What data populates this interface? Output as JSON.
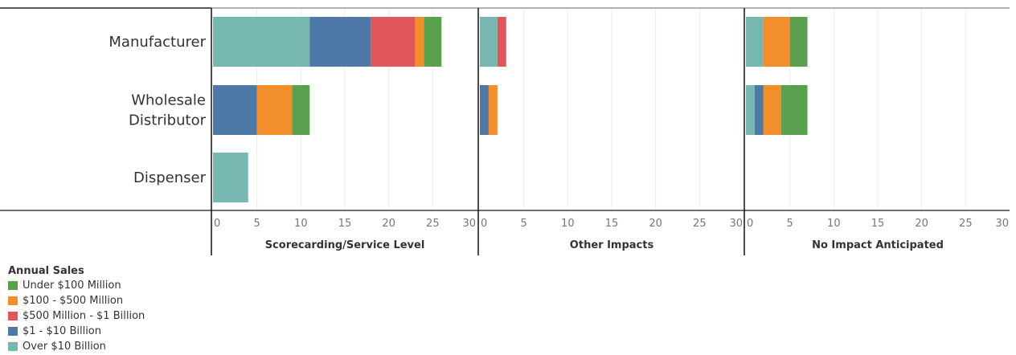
{
  "chart_data": {
    "type": "bar",
    "orientation": "horizontal",
    "stacked": true,
    "categories": [
      "Manufacturer",
      "Wholesale Distributor",
      "Dispenser"
    ],
    "category_lines": [
      [
        "Manufacturer"
      ],
      [
        "Wholesale",
        "Distributor"
      ],
      [
        "Dispenser"
      ]
    ],
    "panels": [
      {
        "title": "Scorecarding/Service Level",
        "xlim": [
          0,
          30
        ],
        "ticks": [
          "0",
          "5",
          "10",
          "15",
          "20",
          "25",
          "30"
        ],
        "series": [
          {
            "name": "Over $10 Billion",
            "values": [
              11,
              0,
              4
            ]
          },
          {
            "name": "$1 - $10 Billion",
            "values": [
              7,
              5,
              0
            ]
          },
          {
            "name": "$500 Million - $1 Billion",
            "values": [
              5,
              0,
              0
            ]
          },
          {
            "name": "$100 - $500 Million",
            "values": [
              1,
              4,
              0
            ]
          },
          {
            "name": "Under $100 Million",
            "values": [
              2,
              2,
              0
            ]
          }
        ]
      },
      {
        "title": "Other Impacts",
        "xlim": [
          0,
          30
        ],
        "ticks": [
          "0",
          "5",
          "10",
          "15",
          "20",
          "25",
          "30"
        ],
        "series": [
          {
            "name": "Over $10 Billion",
            "values": [
              2,
              0,
              0
            ]
          },
          {
            "name": "$1 - $10 Billion",
            "values": [
              0,
              1,
              0
            ]
          },
          {
            "name": "$500 Million - $1 Billion",
            "values": [
              1,
              0,
              0
            ]
          },
          {
            "name": "$100 - $500 Million",
            "values": [
              0,
              1,
              0
            ]
          },
          {
            "name": "Under $100 Million",
            "values": [
              0,
              0,
              0
            ]
          }
        ]
      },
      {
        "title": "No Impact Anticipated",
        "xlim": [
          0,
          30
        ],
        "ticks": [
          "0",
          "5",
          "10",
          "15",
          "20",
          "25",
          "30"
        ],
        "series": [
          {
            "name": "Over $10 Billion",
            "values": [
              2,
              1,
              0
            ]
          },
          {
            "name": "$1 - $10 Billion",
            "values": [
              0,
              1,
              0
            ]
          },
          {
            "name": "$500 Million - $1 Billion",
            "values": [
              0,
              0,
              0
            ]
          },
          {
            "name": "$100 - $500 Million",
            "values": [
              3,
              2,
              0
            ]
          },
          {
            "name": "Under $100 Million",
            "values": [
              2,
              3,
              0
            ]
          }
        ]
      }
    ],
    "colors": {
      "Over $10 Billion": "#76b7b2",
      "$1 - $10 Billion": "#4e79a7",
      "$500 Million - $1 Billion": "#e15759",
      "$100 - $500 Million": "#f28e2b",
      "Under $100 Million": "#59a14f"
    },
    "legend": {
      "title": "Annual Sales",
      "position": "bottom-left",
      "items": [
        {
          "label": "Under $100 Million",
          "color": "#59a14f"
        },
        {
          "label": "$100 - $500 Million",
          "color": "#f28e2b"
        },
        {
          "label": "$500 Million - $1 Billion",
          "color": "#e15759"
        },
        {
          "label": "$1 - $10 Billion",
          "color": "#4e79a7"
        },
        {
          "label": "Over $10 Billion",
          "color": "#76b7b2"
        }
      ]
    },
    "grid": true
  }
}
